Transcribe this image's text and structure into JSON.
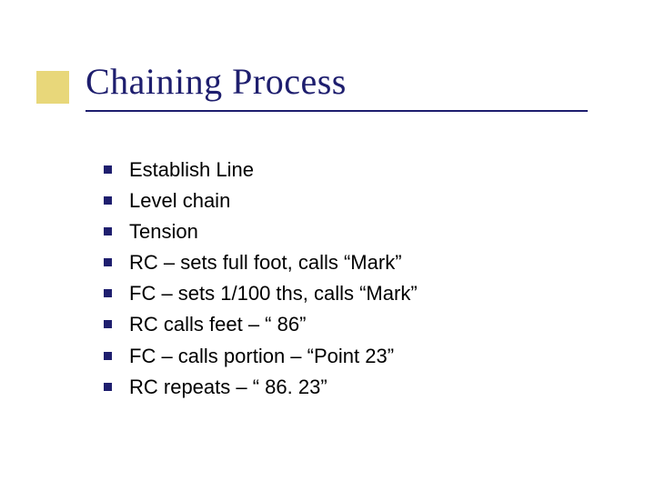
{
  "colors": {
    "accent": "#e8d77a",
    "title_text": "#1e1e6e",
    "rule": "#1e1e6e",
    "bullet": "#1e1e6e",
    "body_text": "#000000",
    "background": "#ffffff"
  },
  "typography": {
    "title_font": "Times New Roman",
    "title_size_pt": 40,
    "body_font": "Tahoma",
    "body_size_pt": 22
  },
  "title": "Chaining Process",
  "items": [
    "Establish Line",
    "Level chain",
    "Tension",
    "RC – sets full foot, calls “Mark”",
    "FC – sets 1/100 ths, calls “Mark”",
    "RC calls feet – “ 86”",
    "FC – calls portion – “Point 23”",
    "RC repeats – “ 86. 23”"
  ]
}
